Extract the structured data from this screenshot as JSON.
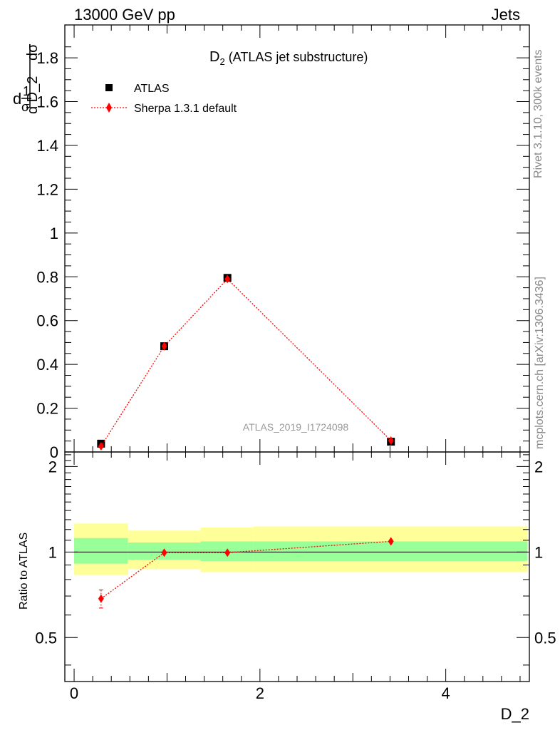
{
  "header": {
    "left": "13000 GeV pp",
    "right": "Jets"
  },
  "side_labels": {
    "rivet": "Rivet 3.1.10,  300k events",
    "source": "mcplots.cern.ch [arXiv:1306.3436]"
  },
  "chart_data": {
    "type": "scatter",
    "title_main": "D",
    "title_sub": "2",
    "title_rest": " (ATLAS jet substructure)",
    "analysis_tag": "ATLAS_2019_I1724098",
    "xlabel": "D_2",
    "ylabel_main": "1/σ dσ/dD_2",
    "ylabel_parts": {
      "d": "d",
      "one": "1",
      "sigma": "σ",
      "dsig": "dσ",
      "dd2": "d D_2"
    },
    "ylabel_ratio": "Ratio to ATLAS",
    "xlim": [
      -0.1,
      4.9
    ],
    "ylim": [
      0,
      1.95
    ],
    "ratio_ylim": [
      0.35,
      2.25
    ],
    "x_ticks": [
      "0",
      "2",
      "4"
    ],
    "y_ticks": [
      "0",
      "0.2",
      "0.4",
      "0.6",
      "0.8",
      "1",
      "1.2",
      "1.4",
      "1.6",
      "1.8"
    ],
    "ratio_ticks": [
      "0.5",
      "1",
      "2"
    ],
    "bins": [
      [
        0.0,
        0.58
      ],
      [
        0.58,
        1.36
      ],
      [
        1.36,
        1.93
      ],
      [
        1.93,
        4.88
      ]
    ],
    "series": [
      {
        "name": "ATLAS",
        "color": "#000000",
        "marker": "square",
        "x": [
          0.29,
          0.97,
          1.65,
          3.41
        ],
        "y": [
          0.038,
          0.483,
          0.795,
          0.047
        ]
      },
      {
        "name": "Sherpa 1.3.1 default",
        "color": "#ff0000",
        "marker": "diamond",
        "line": "dotted",
        "x": [
          0.29,
          0.97,
          1.65,
          3.41
        ],
        "y": [
          0.026,
          0.483,
          0.79,
          0.052
        ]
      }
    ],
    "ratio": {
      "x": [
        0.29,
        0.97,
        1.65,
        3.41
      ],
      "y": [
        0.685,
        0.995,
        0.995,
        1.09
      ],
      "yerr": [
        0.05,
        0.0,
        0.0,
        0.0
      ],
      "stat_band": [
        [
          0.91,
          1.12
        ],
        [
          0.94,
          1.08
        ],
        [
          0.93,
          1.09
        ],
        [
          0.93,
          1.09
        ]
      ],
      "total_band": [
        [
          0.83,
          1.26
        ],
        [
          0.87,
          1.19
        ],
        [
          0.85,
          1.22
        ],
        [
          0.85,
          1.23
        ]
      ],
      "stat_color": "#99ff99",
      "total_color": "#ffff99"
    }
  }
}
